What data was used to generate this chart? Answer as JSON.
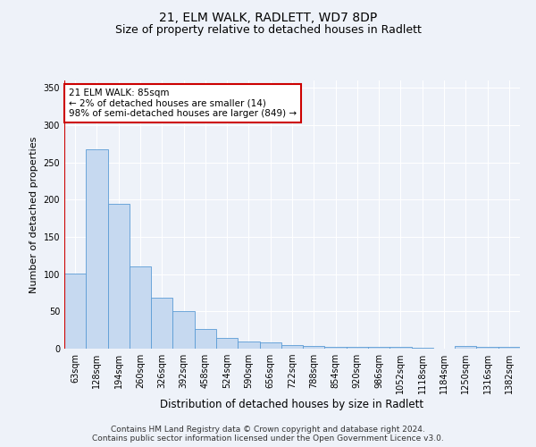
{
  "title": "21, ELM WALK, RADLETT, WD7 8DP",
  "subtitle": "Size of property relative to detached houses in Radlett",
  "xlabel": "Distribution of detached houses by size in Radlett",
  "ylabel": "Number of detached properties",
  "categories": [
    "63sqm",
    "128sqm",
    "194sqm",
    "260sqm",
    "326sqm",
    "392sqm",
    "458sqm",
    "524sqm",
    "590sqm",
    "656sqm",
    "722sqm",
    "788sqm",
    "854sqm",
    "920sqm",
    "986sqm",
    "1052sqm",
    "1118sqm",
    "1184sqm",
    "1250sqm",
    "1316sqm",
    "1382sqm"
  ],
  "values": [
    101,
    268,
    194,
    111,
    68,
    51,
    27,
    15,
    10,
    8,
    5,
    4,
    3,
    3,
    2,
    3,
    1,
    0,
    4,
    3,
    2
  ],
  "bar_color": "#c6d9f0",
  "bar_edge_color": "#5b9bd5",
  "annotation_line1": "21 ELM WALK: 85sqm",
  "annotation_line2": "← 2% of detached houses are smaller (14)",
  "annotation_line3": "98% of semi-detached houses are larger (849) →",
  "annotation_box_color": "#ffffff",
  "annotation_box_edge_color": "#cc0000",
  "vline_color": "#cc0000",
  "ylim": [
    0,
    360
  ],
  "yticks": [
    0,
    50,
    100,
    150,
    200,
    250,
    300,
    350
  ],
  "background_color": "#eef2f9",
  "plot_background_color": "#eef2f9",
  "footer_text": "Contains HM Land Registry data © Crown copyright and database right 2024.\nContains public sector information licensed under the Open Government Licence v3.0.",
  "title_fontsize": 10,
  "subtitle_fontsize": 9,
  "xlabel_fontsize": 8.5,
  "ylabel_fontsize": 8,
  "tick_fontsize": 7,
  "annotation_fontsize": 7.5,
  "footer_fontsize": 6.5
}
